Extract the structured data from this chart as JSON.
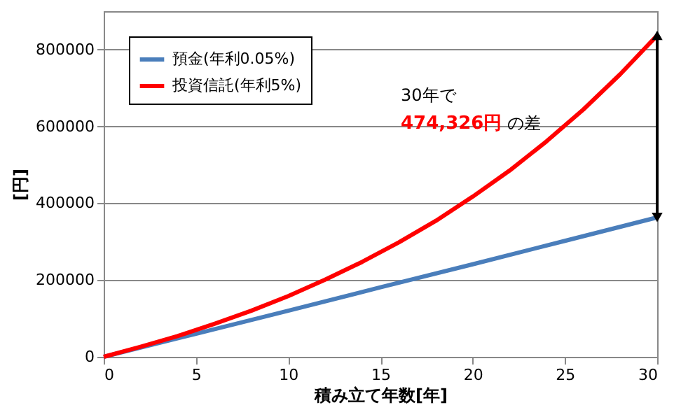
{
  "chart_data": {
    "type": "line",
    "xlabel": "積み立て年数[年]",
    "ylabel": "[円]",
    "x": [
      0,
      5,
      10,
      15,
      20,
      25,
      30
    ],
    "series": [
      {
        "name": "預金(年利0.05%)",
        "color": "#4a7ebb",
        "values": [
          0,
          60000,
          120000,
          181000,
          241000,
          302000,
          363000
        ]
      },
      {
        "name": "投資信託(年利5%)",
        "color": "#ff0000",
        "x": [
          0,
          2,
          4,
          6,
          8,
          10,
          12,
          14,
          16,
          18,
          20,
          22,
          24,
          26,
          28,
          30
        ],
        "values": [
          0,
          26000,
          54000,
          86000,
          120000,
          158000,
          201000,
          247000,
          298000,
          354000,
          417000,
          485000,
          561000,
          644000,
          736000,
          837000
        ]
      }
    ],
    "xlim": [
      0,
      30
    ],
    "xticks": [
      0,
      5,
      10,
      15,
      20,
      25,
      30
    ],
    "ylim": [
      0,
      900000
    ],
    "yticks": [
      0,
      200000,
      400000,
      600000,
      800000
    ],
    "grid": "y",
    "legend": "top left",
    "marker": "none",
    "line_style": "solid",
    "annotations": [
      "30年で",
      "474,326円",
      "の差"
    ]
  }
}
